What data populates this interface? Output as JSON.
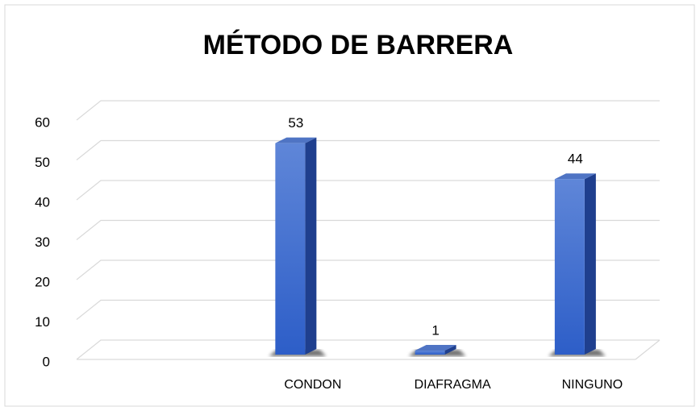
{
  "chart_data": {
    "type": "bar3d",
    "title": "MÉTODO DE BARRERA",
    "categories": [
      null,
      "CONDON",
      "DIAFRAGMA",
      "NINGUNO"
    ],
    "values": [
      null,
      53,
      1,
      44
    ],
    "color": "#3a69cf",
    "ylim": [
      0,
      60
    ],
    "yticks": [
      0,
      10,
      20,
      30,
      40,
      50,
      60
    ],
    "grid": true
  }
}
